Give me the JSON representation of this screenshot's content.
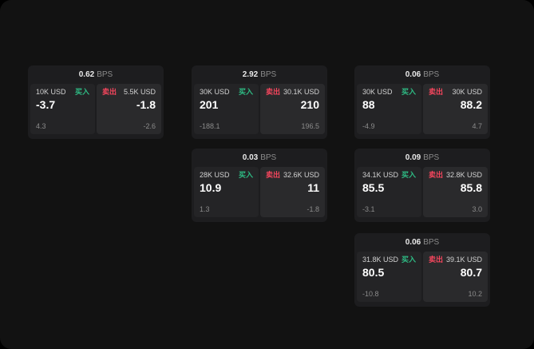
{
  "colors": {
    "buy_accent": "#2ebd85",
    "sell_accent": "#f6465d",
    "background": "#121212",
    "card": "#1d1d1f"
  },
  "labels": {
    "bps": "BPS",
    "buy": "买入",
    "sell": "卖出"
  },
  "cards": [
    {
      "spread": "0.62",
      "buy": {
        "size": "10K USD",
        "price": "-3.7",
        "sub": "4.3"
      },
      "sell": {
        "size": "5.5K USD",
        "price": "-1.8",
        "sub": "-2.6"
      }
    },
    {
      "spread": "2.92",
      "buy": {
        "size": "30K USD",
        "price": "201",
        "sub": "-188.1"
      },
      "sell": {
        "size": "30.1K USD",
        "price": "210",
        "sub": "196.5"
      }
    },
    {
      "spread": "0.06",
      "buy": {
        "size": "30K USD",
        "price": "88",
        "sub": "-4.9"
      },
      "sell": {
        "size": "30K USD",
        "price": "88.2",
        "sub": "4.7"
      }
    },
    {
      "spread": "0.03",
      "buy": {
        "size": "28K USD",
        "price": "10.9",
        "sub": "1.3"
      },
      "sell": {
        "size": "32.6K USD",
        "price": "11",
        "sub": "-1.8"
      }
    },
    {
      "spread": "0.09",
      "buy": {
        "size": "34.1K USD",
        "price": "85.5",
        "sub": "-3.1"
      },
      "sell": {
        "size": "32.8K USD",
        "price": "85.8",
        "sub": "3.0"
      }
    },
    {
      "spread": "0.06",
      "buy": {
        "size": "31.8K USD",
        "price": "80.5",
        "sub": "-10.8"
      },
      "sell": {
        "size": "39.1K USD",
        "price": "80.7",
        "sub": "10.2"
      }
    }
  ]
}
